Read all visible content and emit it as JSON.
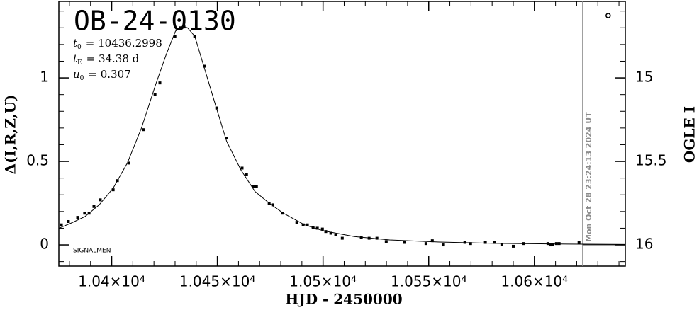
{
  "chart_data": {
    "type": "lightcurve",
    "title": "OB-24-0130",
    "parameters": [
      {
        "symbol": "t",
        "sub": "0",
        "text": "= 10436.2998"
      },
      {
        "symbol": "t",
        "sub": "E",
        "text": "= 34.38 d"
      },
      {
        "symbol": "u",
        "sub": "0",
        "text": "= 0.307"
      }
    ],
    "credit": "SIGNALMEN",
    "x_label": "HJD - 2450000",
    "y_label": "Δ(I,R,Z,U)",
    "y2_label": "OGLE I",
    "xlim": [
      10375,
      10643
    ],
    "ylim": [
      -0.127,
      1.458
    ],
    "y2lim": [
      16.127,
      14.542
    ],
    "xticks": [
      {
        "value": 10400,
        "label": "1.04×10⁴"
      },
      {
        "value": 10450,
        "label": "1.045×10⁴"
      },
      {
        "value": 10500,
        "label": "1.05×10⁴"
      },
      {
        "value": 10550,
        "label": "1.055×10⁴"
      },
      {
        "value": 10600,
        "label": "1.06×10⁴"
      }
    ],
    "yticks": [
      0,
      0.5,
      1
    ],
    "y2ticks": [
      15,
      15.5,
      16
    ],
    "now_line": {
      "x": 10622.8,
      "label": "Mon Oct 28 23:24:13 2024 UT",
      "color": "#8c8c8c"
    },
    "series": [
      {
        "style": "points",
        "color": "#000000",
        "x": [
          10376.2,
          10379.5,
          10383.9,
          10387.2,
          10389.3,
          10391.6,
          10394.6,
          10400.7,
          10402.7,
          10408.1,
          10415.1,
          10420.5,
          10422.8,
          10429.9,
          10432.6,
          10434.2,
          10439.3,
          10444.0,
          10449.7,
          10454.4,
          10461.7,
          10463.8,
          10467.1,
          10468.5,
          10474.5,
          10476.2,
          10480.9,
          10487.6,
          10490.6,
          10492.6,
          10495.3,
          10497.3,
          10499.7,
          10501.3,
          10503.7,
          10506.0,
          10509.1,
          10518.1,
          10521.8,
          10525.5,
          10529.9,
          10538.6,
          10548.7,
          10551.7,
          10557.0,
          10567.1,
          10569.8,
          10576.8,
          10581.2,
          10584.6,
          10590.0,
          10595.0,
          10606.4,
          10607.7,
          10608.7,
          10610.4,
          10611.7,
          10621.1
        ],
        "values": [
          0.12,
          0.14,
          0.165,
          0.19,
          0.19,
          0.23,
          0.27,
          0.33,
          0.385,
          0.49,
          0.69,
          0.9,
          0.97,
          1.25,
          1.3,
          1.305,
          1.25,
          1.07,
          0.82,
          0.64,
          0.46,
          0.42,
          0.35,
          0.35,
          0.25,
          0.24,
          0.19,
          0.135,
          0.12,
          0.12,
          0.105,
          0.1,
          0.095,
          0.08,
          0.07,
          0.06,
          0.04,
          0.045,
          0.04,
          0.04,
          0.02,
          0.015,
          0.008,
          0.025,
          0.0,
          0.015,
          0.008,
          0.015,
          0.015,
          0.004,
          -0.008,
          0.008,
          0.008,
          0.0,
          0.004,
          0.008,
          0.008,
          0.015
        ]
      },
      {
        "style": "line",
        "color": "#000000",
        "x": [
          10375,
          10380.7,
          10387.4,
          10394.1,
          10400.7,
          10407.4,
          10414.1,
          10420.8,
          10425.8,
          10430.2,
          10433.6,
          10435.9,
          10439.3,
          10444.3,
          10449.3,
          10454.4,
          10461.1,
          10467.8,
          10474.5,
          10481.2,
          10491.3,
          10500,
          10514.8,
          10531.5,
          10555,
          10582,
          10615.6,
          10643
        ],
        "values": [
          0.1,
          0.13,
          0.17,
          0.24,
          0.34,
          0.49,
          0.7,
          0.96,
          1.14,
          1.28,
          1.31,
          1.3,
          1.25,
          1.04,
          0.83,
          0.62,
          0.45,
          0.32,
          0.25,
          0.19,
          0.12,
          0.085,
          0.05,
          0.03,
          0.017,
          0.009,
          0.005,
          0.003
        ]
      },
      {
        "style": "circle",
        "color": "#000000",
        "x": [
          10634.9
        ],
        "values": [
          1.373
        ]
      }
    ]
  }
}
